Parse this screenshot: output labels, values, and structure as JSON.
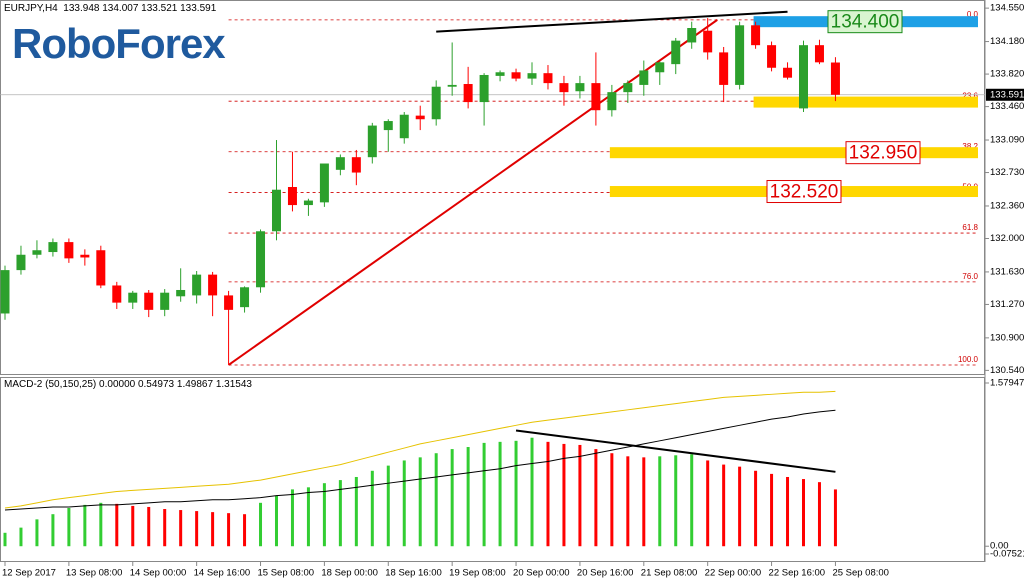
{
  "logo": "RoboForex",
  "chart_data": [
    {
      "type": "candlestick",
      "title": "EURJPY,H4",
      "categories": [
        "12 Sep 2017",
        null,
        null,
        null,
        "13 Sep 08:00",
        null,
        null,
        null,
        "14 Sep 00:00",
        null,
        null,
        null,
        "14 Sep 16:00",
        null,
        null,
        null,
        "15 Sep 08:00",
        null,
        null,
        null,
        "18 Sep 00:00",
        null,
        null,
        null,
        "18 Sep 16:00",
        null,
        null,
        null,
        "19 Sep 08:00",
        null,
        null,
        null,
        "20 Sep 00:00",
        null,
        null,
        null,
        "20 Sep 16:00",
        null,
        null,
        null,
        "21 Sep 08:00",
        null,
        null,
        null,
        "22 Sep 00:00",
        null,
        null,
        null,
        "22 Sep 16:00",
        null,
        null,
        null,
        "25 Sep 08:00"
      ],
      "open": [
        131.17,
        131.65,
        131.82,
        131.85,
        131.96,
        131.82,
        131.87,
        131.48,
        131.29,
        131.4,
        131.21,
        131.36,
        131.37,
        131.6,
        131.37,
        131.24,
        131.46,
        132.08,
        132.57,
        132.37,
        132.4,
        132.76,
        132.9,
        132.9,
        133.2,
        133.11,
        133.36,
        133.32,
        133.68,
        133.71,
        133.51,
        133.8,
        133.84,
        133.77,
        133.83,
        133.72,
        133.63,
        133.72,
        133.42,
        133.62,
        133.7,
        133.84,
        133.93,
        134.17,
        134.3,
        134.06,
        133.7,
        134.36,
        134.14,
        133.89,
        133.44,
        134.14,
        133.948
      ],
      "high": [
        131.7,
        131.92,
        131.98,
        132.0,
        132.0,
        131.88,
        131.92,
        131.52,
        131.42,
        131.43,
        131.44,
        131.67,
        131.64,
        131.63,
        131.42,
        131.47,
        132.1,
        133.09,
        132.96,
        132.44,
        132.82,
        132.93,
        132.98,
        133.28,
        133.32,
        133.4,
        133.47,
        133.75,
        134.17,
        133.9,
        133.83,
        133.86,
        133.88,
        133.95,
        133.92,
        133.8,
        133.8,
        134.06,
        133.7,
        133.75,
        133.97,
        133.96,
        134.22,
        134.4,
        134.44,
        134.12,
        134.4,
        134.4,
        134.18,
        133.95,
        134.19,
        134.2,
        134.007
      ],
      "low": [
        131.1,
        131.6,
        131.78,
        131.8,
        131.73,
        131.7,
        131.45,
        131.22,
        131.22,
        131.13,
        131.14,
        131.3,
        131.28,
        131.14,
        130.6,
        131.18,
        131.4,
        131.98,
        132.3,
        132.25,
        132.35,
        132.7,
        132.59,
        132.83,
        132.96,
        133.05,
        133.2,
        133.25,
        133.58,
        133.44,
        133.25,
        133.74,
        133.74,
        133.7,
        133.65,
        133.47,
        133.55,
        133.25,
        133.35,
        133.5,
        133.58,
        133.7,
        133.82,
        134.1,
        133.98,
        133.51,
        133.65,
        134.1,
        133.85,
        133.76,
        133.4,
        133.93,
        133.521
      ],
      "close": [
        131.65,
        131.82,
        131.87,
        131.96,
        131.78,
        131.79,
        131.48,
        131.29,
        131.4,
        131.21,
        131.4,
        131.43,
        131.6,
        131.37,
        131.21,
        131.46,
        132.08,
        132.54,
        132.37,
        132.42,
        132.83,
        132.9,
        132.73,
        133.25,
        133.3,
        133.37,
        133.32,
        133.68,
        133.7,
        133.51,
        133.81,
        133.84,
        133.77,
        133.83,
        133.72,
        133.62,
        133.72,
        133.42,
        133.62,
        133.72,
        133.86,
        133.95,
        134.19,
        134.33,
        134.06,
        133.7,
        134.36,
        134.14,
        133.89,
        133.78,
        134.14,
        133.95,
        133.591
      ],
      "up_color": "#2ca02c",
      "down_color": "#ff0000",
      "ylim": [
        130.5,
        134.64
      ],
      "yticks": [
        {
          "value": 134.55,
          "label": "134.550"
        },
        {
          "value": 134.18,
          "label": "134.180"
        },
        {
          "value": 133.82,
          "label": "133.820"
        },
        {
          "value": 133.46,
          "label": "133.460"
        },
        {
          "value": 133.09,
          "label": "133.090"
        },
        {
          "value": 132.73,
          "label": "132.730"
        },
        {
          "value": 132.36,
          "label": "132.360"
        },
        {
          "value": 132.0,
          "label": "132.000"
        },
        {
          "value": 131.63,
          "label": "131.630"
        },
        {
          "value": 131.27,
          "label": "131.270"
        },
        {
          "value": 130.9,
          "label": "130.900"
        },
        {
          "value": 130.54,
          "label": "130.540"
        }
      ],
      "fib_color": "#d00000",
      "fib_start": 14,
      "fib_levels": [
        {
          "value": 134.42,
          "label": "0.0"
        },
        {
          "value": 133.52,
          "label": "23.6"
        },
        {
          "value": 132.96,
          "label": "38.2"
        },
        {
          "value": 132.51,
          "label": "50.0"
        },
        {
          "value": 132.06,
          "label": "61.8"
        },
        {
          "value": 131.52,
          "label": "76.0"
        },
        {
          "value": 130.6,
          "label": "100.0"
        }
      ],
      "zones": [
        {
          "value": 134.4,
          "start": 47,
          "color": "#1ea0e6",
          "label": "134.400",
          "label_color": "#1a8a1a",
          "label_fill": "#d9f5d0"
        },
        {
          "value": 133.51,
          "start": 47,
          "color": "#ffd700"
        },
        {
          "value": 132.95,
          "start": 38,
          "color": "#ffd700",
          "label": "132.950",
          "label_color": "#e00000",
          "label_fill": "#ffffff"
        },
        {
          "value": 132.52,
          "start": 38,
          "color": "#ffd700",
          "label": "132.520",
          "label_color": "#e00000",
          "label_fill": "#ffffff"
        }
      ],
      "trend_lines": [
        {
          "from": [
            14,
            130.6
          ],
          "to": [
            44.6,
            134.42
          ],
          "color": "#e00000"
        },
        {
          "from": [
            27,
            134.29
          ],
          "to": [
            49,
            134.51
          ],
          "color": "#000000"
        }
      ]
    },
    {
      "type": "macd",
      "title": "MACD-2 (50,150,25) 0.00000",
      "values": [
        0.13,
        0.18,
        0.26,
        0.31,
        0.37,
        0.4,
        0.42,
        0.41,
        0.39,
        0.38,
        0.36,
        0.35,
        0.34,
        0.33,
        0.32,
        0.31,
        0.42,
        0.49,
        0.55,
        0.57,
        0.61,
        0.64,
        0.67,
        0.73,
        0.78,
        0.83,
        0.86,
        0.9,
        0.94,
        0.96,
        1.0,
        1.01,
        1.02,
        1.05,
        1.01,
        0.99,
        0.98,
        0.94,
        0.9,
        0.87,
        0.86,
        0.87,
        0.88,
        0.89,
        0.83,
        0.79,
        0.77,
        0.73,
        0.7,
        0.67,
        0.65,
        0.62,
        0.54973
      ],
      "up_color": "#32cd32",
      "down_color": "#ff0000",
      "lines": [
        {
          "color": "#e6c200",
          "values": [
            0.37,
            0.39,
            0.42,
            0.45,
            0.47,
            0.49,
            0.51,
            0.53,
            0.54,
            0.55,
            0.56,
            0.57,
            0.58,
            0.59,
            0.6,
            0.62,
            0.64,
            0.67,
            0.7,
            0.73,
            0.76,
            0.79,
            0.83,
            0.87,
            0.91,
            0.95,
            0.99,
            1.02,
            1.05,
            1.08,
            1.11,
            1.14,
            1.17,
            1.2,
            1.22,
            1.24,
            1.26,
            1.28,
            1.3,
            1.32,
            1.34,
            1.36,
            1.38,
            1.4,
            1.42,
            1.44,
            1.45,
            1.46,
            1.47,
            1.48,
            1.49,
            1.49,
            1.49867
          ]
        },
        {
          "color": "#000000",
          "values": [
            0.35,
            0.36,
            0.37,
            0.38,
            0.38,
            0.39,
            0.4,
            0.4,
            0.41,
            0.42,
            0.43,
            0.43,
            0.44,
            0.45,
            0.45,
            0.46,
            0.47,
            0.49,
            0.5,
            0.52,
            0.53,
            0.55,
            0.57,
            0.59,
            0.61,
            0.63,
            0.65,
            0.67,
            0.69,
            0.71,
            0.73,
            0.75,
            0.78,
            0.8,
            0.82,
            0.85,
            0.87,
            0.9,
            0.93,
            0.96,
            0.99,
            1.02,
            1.05,
            1.08,
            1.11,
            1.14,
            1.17,
            1.2,
            1.23,
            1.25,
            1.28,
            1.3,
            1.31543
          ]
        }
      ],
      "ylim": [
        -0.07521,
        1.57947
      ],
      "yticks": [
        1.57947,
        {
          "value": 0,
          "label": "0.00"
        },
        -0.07521
      ],
      "trend_lines": [
        {
          "from": [
            32,
            1.12
          ],
          "to": [
            52,
            0.72
          ],
          "color": "#000000"
        }
      ]
    }
  ]
}
